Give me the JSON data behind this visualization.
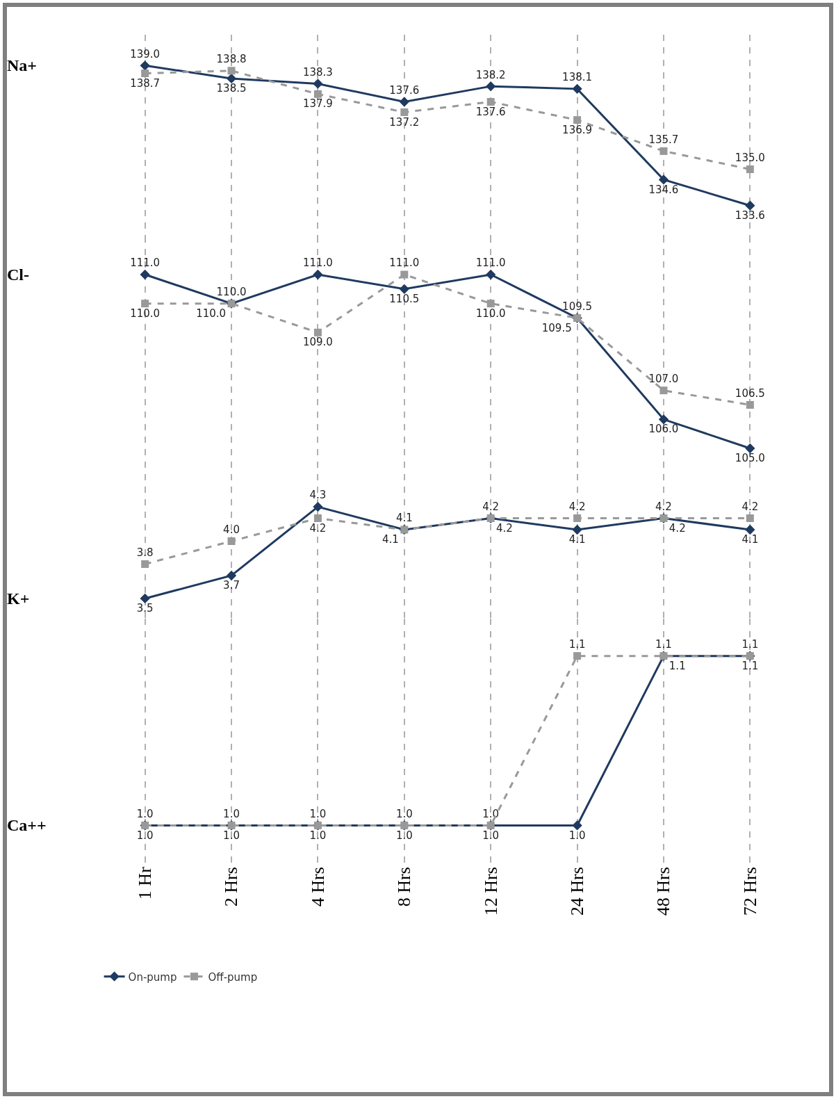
{
  "chart_data": [
    {
      "type": "line",
      "ylabel": "Na+",
      "categories": [
        null,
        null,
        null,
        null,
        null,
        null,
        null,
        null
      ],
      "grid": "x",
      "tick_labels": false,
      "legend": false,
      "series": [
        {
          "color": "#1f3a5f",
          "marker": "diamond",
          "line_style": "solid",
          "values": [
            139.0,
            138.5,
            138.3,
            137.6,
            138.2,
            138.1,
            134.6,
            133.6
          ],
          "value_labels": [
            "139.0",
            "138.5",
            "138.3",
            "137.6",
            "138.2",
            "138.1",
            "134.6",
            "133.6"
          ]
        },
        {
          "color": "#999999",
          "marker": "square",
          "line_style": "dashed",
          "values": [
            138.7,
            138.8,
            137.9,
            137.2,
            137.6,
            136.9,
            135.7,
            135.0
          ],
          "value_labels": [
            "138.7",
            "138.8",
            "137.9",
            "137.2",
            "137.6",
            "136.9",
            "135.7",
            "135.0"
          ]
        }
      ]
    },
    {
      "type": "line",
      "ylabel": "Cl-",
      "categories": [
        null,
        null,
        null,
        null,
        null,
        null,
        null,
        null
      ],
      "grid": "x",
      "tick_labels": false,
      "legend": false,
      "series": [
        {
          "color": "#1f3a5f",
          "marker": "diamond",
          "line_style": "solid",
          "values": [
            111.0,
            110.0,
            111.0,
            110.5,
            111.0,
            109.5,
            106.0,
            105.0
          ],
          "value_labels": [
            "111.0",
            "110.0",
            "111.0",
            "110.5",
            "111.0",
            "109.5",
            "106.0",
            "105.0"
          ]
        },
        {
          "color": "#999999",
          "marker": "square",
          "line_style": "dashed",
          "values": [
            110.0,
            110.0,
            109.0,
            111.0,
            110.0,
            109.5,
            107.0,
            106.5
          ],
          "value_labels": [
            "110.0",
            "110.0",
            "109.0",
            "111.0",
            "110.0",
            "109.5",
            "107.0",
            "106.5"
          ]
        }
      ]
    },
    {
      "type": "line",
      "ylabel": "K+",
      "categories": [
        null,
        null,
        null,
        null,
        null,
        null,
        null,
        null
      ],
      "grid": "x",
      "tick_labels": false,
      "legend": false,
      "series": [
        {
          "color": "#1f3a5f",
          "marker": "diamond",
          "line_style": "solid",
          "values": [
            3.5,
            3.7,
            4.3,
            4.1,
            4.2,
            4.1,
            4.2,
            4.1
          ],
          "value_labels": [
            "3.5",
            "3.7",
            "4.3",
            "4.1",
            "4.2",
            "4.1",
            "4.2",
            "4.1"
          ]
        },
        {
          "color": "#999999",
          "marker": "square",
          "line_style": "dashed",
          "values": [
            3.8,
            4.0,
            4.2,
            4.1,
            4.2,
            4.2,
            4.2,
            4.2
          ],
          "value_labels": [
            "3.8",
            "4.0",
            "4.2",
            "4.1",
            "4.2",
            "4.2",
            "4.2",
            "4.2"
          ]
        }
      ]
    },
    {
      "type": "line",
      "ylabel": "Ca++",
      "categories": [
        "1 Hr",
        "2 Hrs",
        "4 Hrs",
        "8 Hrs",
        "12 Hrs",
        "24 Hrs",
        "48 Hrs",
        "72 Hrs"
      ],
      "grid": "x",
      "tick_labels": "x",
      "legend": "bottom left",
      "series": [
        {
          "name": "On-pump",
          "color": "#1f3a5f",
          "marker": "diamond",
          "line_style": "solid",
          "values": [
            1.0,
            1.0,
            1.0,
            1.0,
            1.0,
            1.0,
            1.1,
            1.1
          ],
          "value_labels": [
            "1.0",
            "1.0",
            "1.0",
            "1.0",
            "1.0",
            "1.0",
            "1.1",
            "1.1"
          ]
        },
        {
          "name": "Off-pump",
          "color": "#999999",
          "marker": "square",
          "line_style": "dashed",
          "values": [
            1.0,
            1.0,
            1.0,
            1.0,
            1.0,
            1.1,
            1.1,
            1.1
          ],
          "value_labels": [
            "1.0",
            "1.0",
            "1.0",
            "1.0",
            "1.0",
            "1.1",
            "1.1",
            "1.1"
          ]
        }
      ]
    }
  ]
}
